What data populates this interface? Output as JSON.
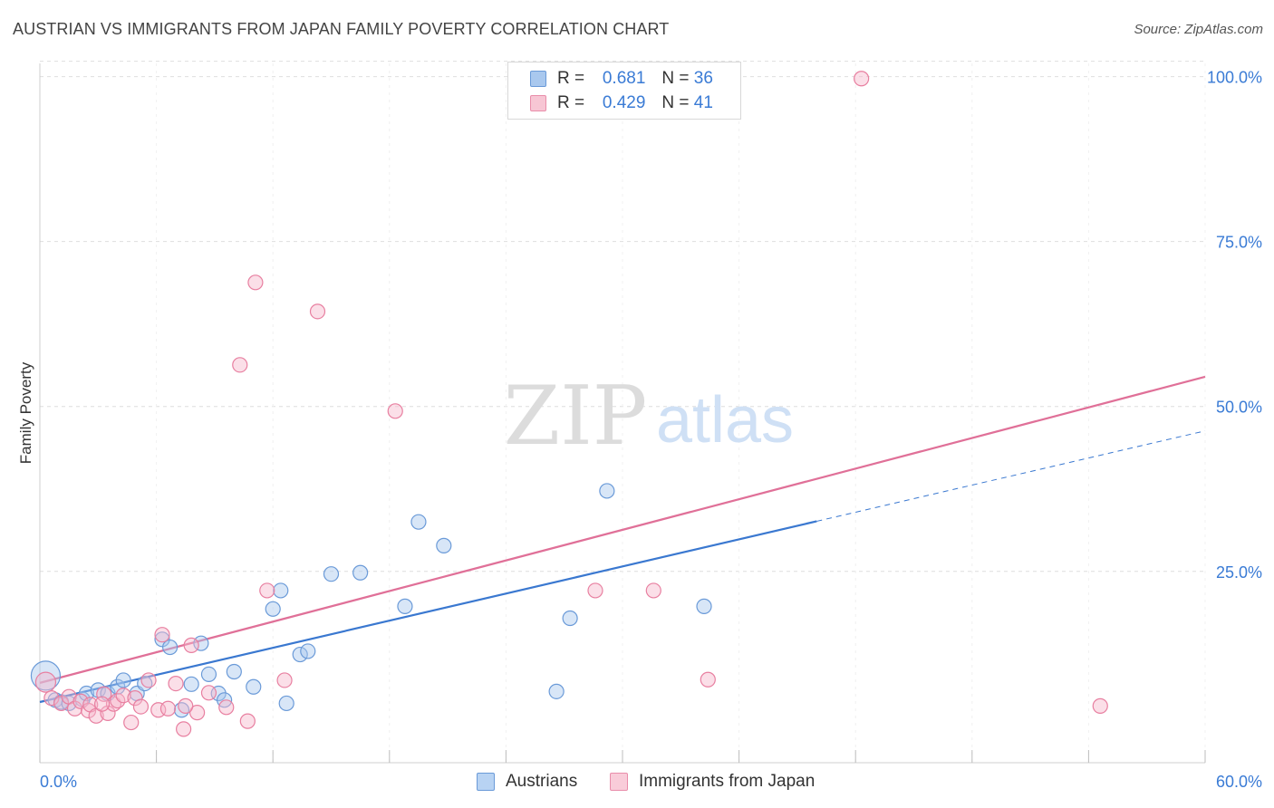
{
  "title": "AUSTRIAN VS IMMIGRANTS FROM JAPAN FAMILY POVERTY CORRELATION CHART",
  "source": "Source: ZipAtlas.com",
  "colors": {
    "blue_fill": "#a9c8ee",
    "blue_stroke": "#6a9ad8",
    "blue_line": "#3a78d0",
    "pink_fill": "#f7b9cb",
    "pink_stroke": "#e87fa0",
    "pink_line": "#e07098",
    "tick_label": "#3a7bd5",
    "grid": "#dedede"
  },
  "legend": {
    "series": [
      {
        "r_label": "R =",
        "r_value": "0.681",
        "n_label": "N =",
        "n_value": "36"
      },
      {
        "r_label": "R =",
        "r_value": "0.429",
        "n_label": "N =",
        "n_value": "41"
      }
    ]
  },
  "bottom_legend": {
    "items": [
      "Austrians",
      "Immigrants from Japan"
    ]
  },
  "watermark": {
    "zip": "ZIP",
    "atlas": "atlas"
  },
  "chart_data": {
    "type": "scatter",
    "title": "AUSTRIAN VS IMMIGRANTS FROM JAPAN FAMILY POVERTY CORRELATION CHART",
    "xlabel": "",
    "ylabel": "Family Poverty",
    "xlim": [
      0,
      60
    ],
    "ylim": [
      -4,
      102
    ],
    "x_tick_labels": [
      "0.0%",
      "60.0%"
    ],
    "y_ticks": [
      25,
      50,
      75,
      100
    ],
    "y_tick_labels": [
      "25.0%",
      "50.0%",
      "75.0%",
      "100.0%"
    ],
    "grid": true,
    "series": [
      {
        "name": "Austrians",
        "r": 0.681,
        "n": 36,
        "trend": {
          "x0": 0,
          "y0": 5.2,
          "x1": 40,
          "y1": 32.6,
          "dash_x1": 60,
          "dash_y1": 46.3
        },
        "points": [
          [
            0.3,
            9.2
          ],
          [
            0.8,
            5.5
          ],
          [
            1.1,
            5.2
          ],
          [
            1.5,
            5.0
          ],
          [
            2.2,
            5.6
          ],
          [
            2.4,
            6.5
          ],
          [
            3.0,
            7.0
          ],
          [
            3.5,
            6.5
          ],
          [
            4.0,
            7.5
          ],
          [
            4.3,
            8.5
          ],
          [
            5.0,
            6.5
          ],
          [
            5.4,
            8.0
          ],
          [
            6.3,
            14.7
          ],
          [
            6.7,
            13.5
          ],
          [
            7.3,
            4.0
          ],
          [
            7.8,
            7.9
          ],
          [
            8.3,
            14.1
          ],
          [
            8.7,
            9.4
          ],
          [
            9.2,
            6.5
          ],
          [
            9.5,
            5.5
          ],
          [
            10.0,
            9.8
          ],
          [
            11.0,
            7.5
          ],
          [
            12.0,
            19.3
          ],
          [
            12.4,
            22.1
          ],
          [
            12.7,
            5.0
          ],
          [
            13.4,
            12.4
          ],
          [
            13.8,
            12.9
          ],
          [
            15.0,
            24.6
          ],
          [
            16.5,
            24.8
          ],
          [
            18.8,
            19.7
          ],
          [
            19.5,
            32.5
          ],
          [
            20.8,
            28.9
          ],
          [
            26.6,
            6.8
          ],
          [
            27.3,
            17.9
          ],
          [
            29.2,
            37.2
          ],
          [
            34.2,
            19.7
          ]
        ]
      },
      {
        "name": "Immigrants from Japan",
        "r": 0.429,
        "n": 41,
        "trend": {
          "x0": 0,
          "y0": 8.1,
          "x1": 60,
          "y1": 54.5
        },
        "points": [
          [
            0.3,
            8.2
          ],
          [
            0.6,
            5.8
          ],
          [
            1.1,
            5.0
          ],
          [
            1.5,
            6.0
          ],
          [
            1.8,
            4.2
          ],
          [
            2.1,
            5.3
          ],
          [
            2.5,
            3.9
          ],
          [
            2.6,
            4.8
          ],
          [
            2.9,
            3.1
          ],
          [
            3.3,
            6.4
          ],
          [
            3.5,
            3.5
          ],
          [
            3.8,
            4.9
          ],
          [
            4.0,
            5.4
          ],
          [
            4.3,
            6.2
          ],
          [
            4.7,
            2.1
          ],
          [
            4.9,
            5.8
          ],
          [
            5.2,
            4.5
          ],
          [
            5.6,
            8.5
          ],
          [
            6.1,
            4.0
          ],
          [
            6.3,
            15.4
          ],
          [
            6.6,
            4.2
          ],
          [
            7.0,
            8.0
          ],
          [
            7.4,
            1.1
          ],
          [
            7.8,
            13.8
          ],
          [
            8.1,
            3.6
          ],
          [
            8.7,
            6.6
          ],
          [
            9.6,
            4.4
          ],
          [
            10.3,
            56.3
          ],
          [
            10.7,
            2.3
          ],
          [
            11.1,
            68.8
          ],
          [
            11.7,
            22.1
          ],
          [
            12.6,
            8.5
          ],
          [
            14.3,
            64.4
          ],
          [
            18.3,
            49.3
          ],
          [
            28.6,
            22.1
          ],
          [
            31.6,
            22.1
          ],
          [
            34.4,
            8.6
          ],
          [
            42.3,
            99.7
          ],
          [
            54.6,
            4.6
          ],
          [
            3.2,
            4.9
          ],
          [
            7.5,
            4.6
          ]
        ]
      }
    ]
  }
}
